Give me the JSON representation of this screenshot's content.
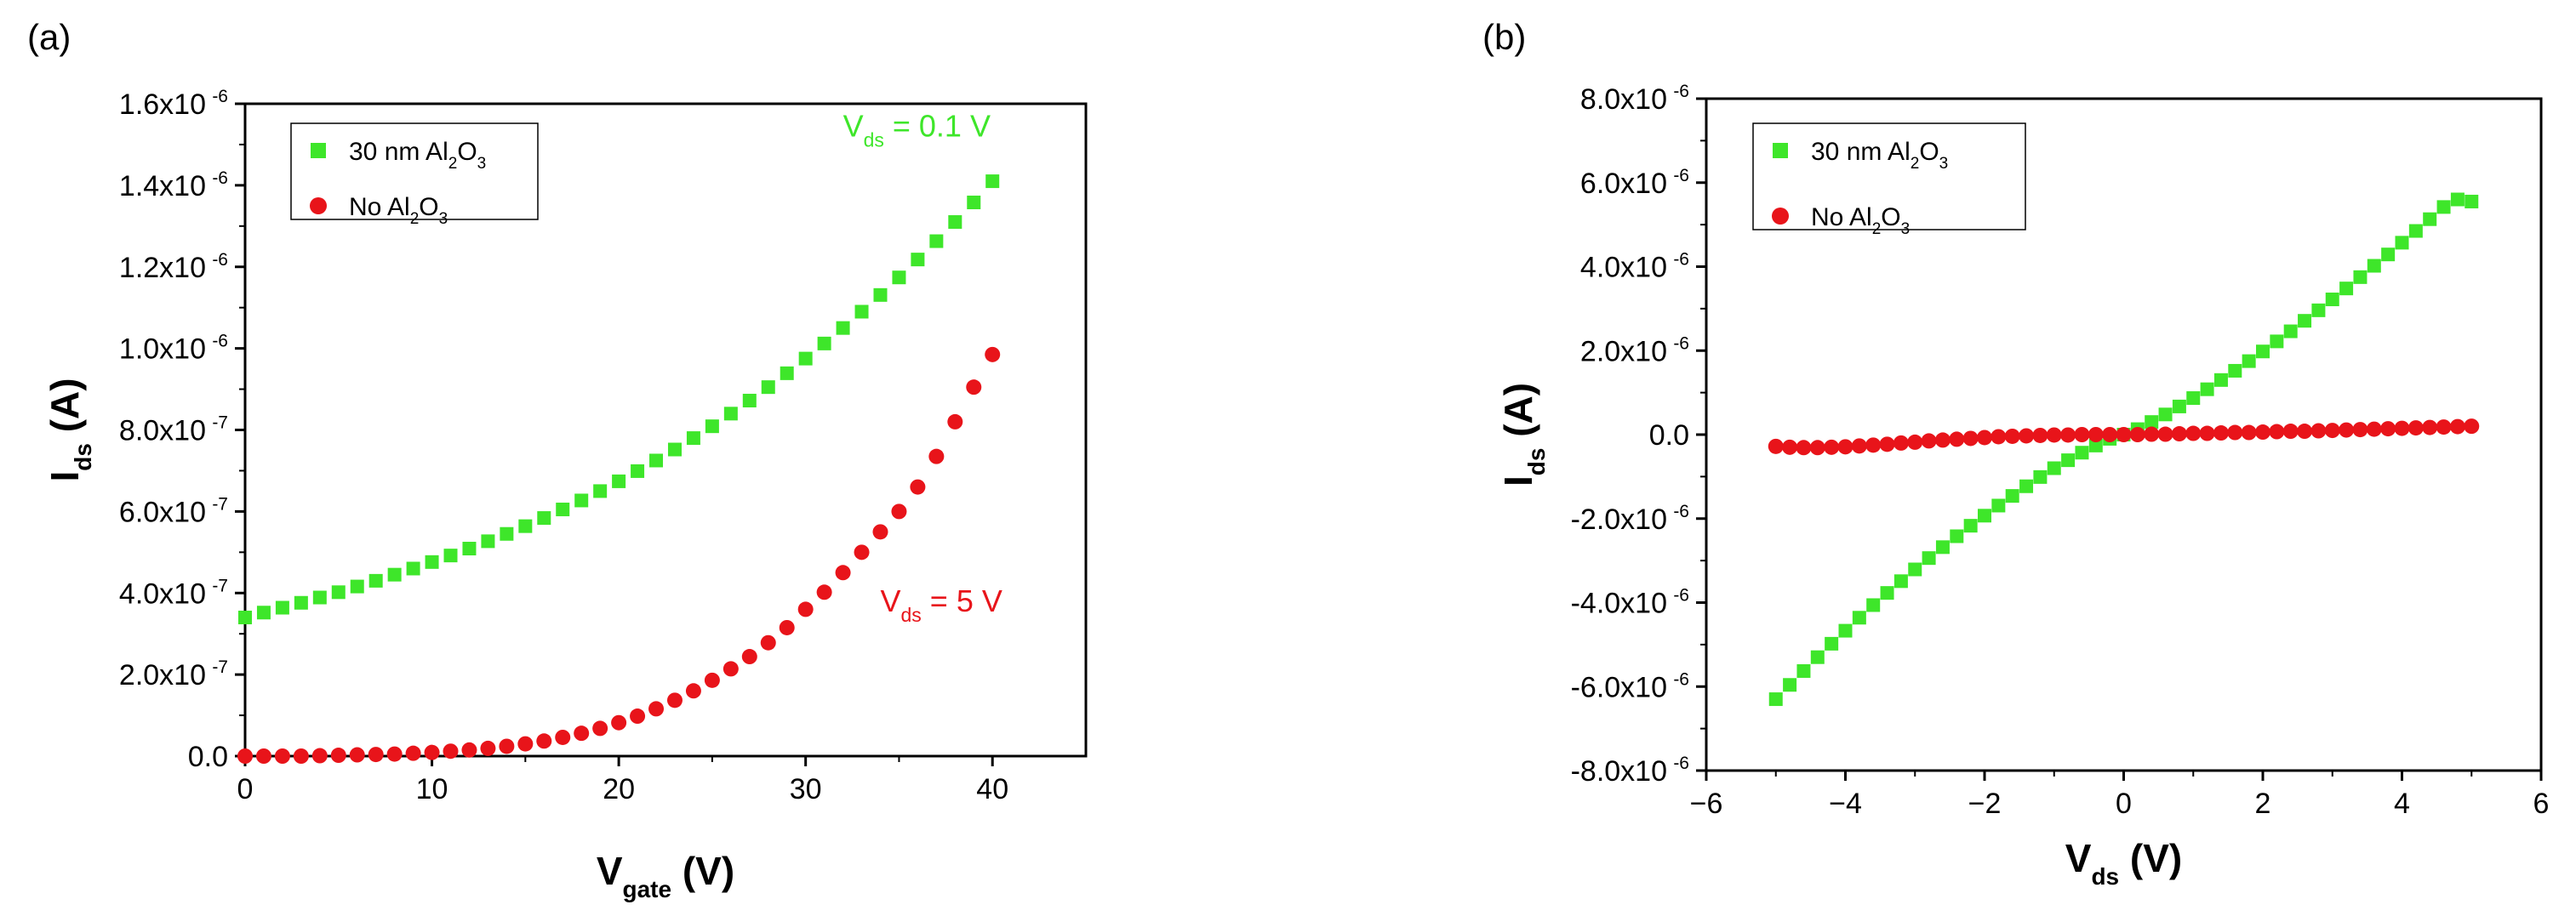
{
  "chart_data": [
    {
      "panel_label": "(a)",
      "type": "scatter",
      "xlabel": {
        "main": "V",
        "sub": "gate",
        "unit": " (V)"
      },
      "ylabel": {
        "main": "I",
        "sub": "ds",
        "unit": " (A)"
      },
      "xlim": [
        0,
        45
      ],
      "ylim": [
        0,
        1.6e-06
      ],
      "xticks": [
        0,
        10,
        20,
        30,
        40
      ],
      "yticks": [
        {
          "value": 0,
          "mant": "0.0",
          "exp": ""
        },
        {
          "value": 2e-07,
          "mant": "2.0x10",
          "exp": "-7"
        },
        {
          "value": 4e-07,
          "mant": "4.0x10",
          "exp": "-7"
        },
        {
          "value": 6e-07,
          "mant": "6.0x10",
          "exp": "-7"
        },
        {
          "value": 8e-07,
          "mant": "8.0x10",
          "exp": "-7"
        },
        {
          "value": 1e-06,
          "mant": "1.0x10",
          "exp": "-6"
        },
        {
          "value": 1.2e-06,
          "mant": "1.2x10",
          "exp": "-6"
        },
        {
          "value": 1.4e-06,
          "mant": "1.4x10",
          "exp": "-6"
        },
        {
          "value": 1.6e-06,
          "mant": "1.6x10",
          "exp": "-6"
        }
      ],
      "legend": {
        "position": "top-left",
        "entries": [
          {
            "series": 0,
            "parts": [
              [
                "30 nm Al",
                ""
              ],
              [
                "2",
                "sub"
              ],
              [
                "O",
                ""
              ],
              [
                "3",
                "sub"
              ]
            ]
          },
          {
            "series": 1,
            "parts": [
              [
                "No Al",
                ""
              ],
              [
                "2",
                "sub"
              ],
              [
                "O",
                ""
              ],
              [
                "3",
                "sub"
              ]
            ]
          }
        ]
      },
      "annotations": [
        {
          "series": 0,
          "near": "upper-right",
          "parts": [
            [
              "V",
              ""
            ],
            [
              "ds",
              "sub"
            ],
            [
              " = 0.1 V",
              ""
            ]
          ],
          "x": 32,
          "y": 1.52e-06
        },
        {
          "series": 1,
          "near": "lower-right",
          "parts": [
            [
              "V",
              ""
            ],
            [
              "ds",
              "sub"
            ],
            [
              " = 5 V",
              ""
            ]
          ],
          "x": 34,
          "y": 3.55e-07
        }
      ],
      "series": [
        {
          "name": "30 nm Al2O3",
          "marker": "square",
          "color": "#3ee62a",
          "x": [
            0,
            1,
            2,
            3,
            4,
            5,
            6,
            7,
            8,
            9,
            10,
            11,
            12,
            13,
            14,
            15,
            16,
            17,
            18,
            19,
            20,
            21,
            22,
            23,
            24,
            25,
            26,
            27,
            28,
            29,
            30,
            31,
            32,
            33,
            34,
            35,
            36,
            37,
            38,
            39,
            40
          ],
          "y": [
            3.4e-07,
            3.52e-07,
            3.64e-07,
            3.76e-07,
            3.89e-07,
            4.02e-07,
            4.16e-07,
            4.3e-07,
            4.45e-07,
            4.6e-07,
            4.76e-07,
            4.92e-07,
            5.09e-07,
            5.27e-07,
            5.45e-07,
            5.64e-07,
            5.84e-07,
            6.05e-07,
            6.27e-07,
            6.5e-07,
            6.74e-07,
            6.99e-07,
            7.25e-07,
            7.52e-07,
            7.8e-07,
            8.09e-07,
            8.4e-07,
            8.72e-07,
            9.05e-07,
            9.39e-07,
            9.75e-07,
            1.012e-06,
            1.05e-06,
            1.09e-06,
            1.131e-06,
            1.174e-06,
            1.218e-06,
            1.263e-06,
            1.31e-06,
            1.358e-06,
            1.41e-06
          ]
        },
        {
          "name": "No Al2O3",
          "marker": "circle",
          "color": "#e8141a",
          "x": [
            0,
            1,
            2,
            3,
            4,
            5,
            6,
            7,
            8,
            9,
            10,
            11,
            12,
            13,
            14,
            15,
            16,
            17,
            18,
            19,
            20,
            21,
            22,
            23,
            24,
            25,
            26,
            27,
            28,
            29,
            30,
            31,
            32,
            33,
            34,
            35,
            36,
            37,
            38,
            39,
            40
          ],
          "y": [
            0,
            0,
            0,
            0,
            1e-09,
            2e-09,
            3e-09,
            4e-09,
            5e-09,
            7e-09,
            9e-09,
            1.2e-08,
            1.5e-08,
            1.9e-08,
            2.4e-08,
            3e-08,
            3.7e-08,
            4.6e-08,
            5.6e-08,
            6.8e-08,
            8.2e-08,
            9.8e-08,
            1.16e-07,
            1.37e-07,
            1.6e-07,
            1.86e-07,
            2.14e-07,
            2.44e-07,
            2.78e-07,
            3.15e-07,
            3.6e-07,
            4.02e-07,
            4.5e-07,
            5e-07,
            5.5e-07,
            6e-07,
            6.6e-07,
            7.35e-07,
            8.2e-07,
            9.05e-07,
            9.85e-07
          ]
        }
      ]
    },
    {
      "panel_label": "(b)",
      "type": "scatter",
      "xlabel": {
        "main": "V",
        "sub": "ds",
        "unit": " (V)"
      },
      "ylabel": {
        "main": "I",
        "sub": "ds",
        "unit": " (A)"
      },
      "xlim": [
        -6,
        6
      ],
      "ylim": [
        -8e-06,
        8e-06
      ],
      "xticks": [
        -6,
        -4,
        -2,
        0,
        2,
        4,
        6
      ],
      "xtick_labels": [
        "−6",
        "−4",
        "−2",
        "0",
        "2",
        "4",
        "6"
      ],
      "yticks": [
        {
          "value": -8e-06,
          "mant": "-8.0x10",
          "exp": "-6"
        },
        {
          "value": -6e-06,
          "mant": "-6.0x10",
          "exp": "-6"
        },
        {
          "value": -4e-06,
          "mant": "-4.0x10",
          "exp": "-6"
        },
        {
          "value": -2e-06,
          "mant": "-2.0x10",
          "exp": "-6"
        },
        {
          "value": 0,
          "mant": "0.0",
          "exp": ""
        },
        {
          "value": 2e-06,
          "mant": "2.0x10",
          "exp": "-6"
        },
        {
          "value": 4e-06,
          "mant": "4.0x10",
          "exp": "-6"
        },
        {
          "value": 6e-06,
          "mant": "6.0x10",
          "exp": "-6"
        },
        {
          "value": 8e-06,
          "mant": "8.0x10",
          "exp": "-6"
        }
      ],
      "legend": {
        "position": "top-left",
        "entries": [
          {
            "series": 0,
            "parts": [
              [
                "30 nm Al",
                ""
              ],
              [
                "2",
                "sub"
              ],
              [
                "O",
                ""
              ],
              [
                "3",
                "sub"
              ]
            ]
          },
          {
            "series": 1,
            "parts": [
              [
                "No Al",
                ""
              ],
              [
                "2",
                "sub"
              ],
              [
                "O",
                ""
              ],
              [
                "3",
                "sub"
              ]
            ]
          }
        ]
      },
      "annotations": [],
      "series": [
        {
          "name": "30 nm Al2O3",
          "marker": "square",
          "color": "#3ee62a",
          "x": [
            -5.0,
            -4.8,
            -4.6,
            -4.4,
            -4.2,
            -4.0,
            -3.8,
            -3.6,
            -3.4,
            -3.2,
            -3.0,
            -2.8,
            -2.6,
            -2.4,
            -2.2,
            -2.0,
            -1.8,
            -1.6,
            -1.4,
            -1.2,
            -1.0,
            -0.8,
            -0.6,
            -0.4,
            -0.2,
            0.0,
            0.2,
            0.4,
            0.6,
            0.8,
            1.0,
            1.2,
            1.4,
            1.6,
            1.8,
            2.0,
            2.2,
            2.4,
            2.6,
            2.8,
            3.0,
            3.2,
            3.4,
            3.6,
            3.8,
            4.0,
            4.2,
            4.4,
            4.6,
            4.8,
            5.0
          ],
          "y": [
            -6.3e-06,
            -5.96e-06,
            -5.63e-06,
            -5.3e-06,
            -4.98e-06,
            -4.67e-06,
            -4.36e-06,
            -4.06e-06,
            -3.77e-06,
            -3.49e-06,
            -3.21e-06,
            -2.94e-06,
            -2.68e-06,
            -2.42e-06,
            -2.17e-06,
            -1.93e-06,
            -1.69e-06,
            -1.46e-06,
            -1.23e-06,
            -1.01e-06,
            -8e-07,
            -6.1e-07,
            -4.3e-07,
            -2.6e-07,
            -1e-07,
            0.0,
            1.3e-07,
            3e-07,
            4.8e-07,
            6.7e-07,
            8.7e-07,
            1.08e-06,
            1.3e-06,
            1.52e-06,
            1.75e-06,
            1.98e-06,
            2.22e-06,
            2.46e-06,
            2.71e-06,
            2.96e-06,
            3.22e-06,
            3.48e-06,
            3.75e-06,
            4.02e-06,
            4.29e-06,
            4.57e-06,
            4.85e-06,
            5.13e-06,
            5.42e-06,
            5.6e-06,
            5.55e-06
          ]
        },
        {
          "name": "No Al2O3",
          "marker": "circle",
          "color": "#e8141a",
          "x": [
            -5.0,
            -4.8,
            -4.6,
            -4.4,
            -4.2,
            -4.0,
            -3.8,
            -3.6,
            -3.4,
            -3.2,
            -3.0,
            -2.8,
            -2.6,
            -2.4,
            -2.2,
            -2.0,
            -1.8,
            -1.6,
            -1.4,
            -1.2,
            -1.0,
            -0.8,
            -0.6,
            -0.4,
            -0.2,
            0.0,
            0.2,
            0.4,
            0.6,
            0.8,
            1.0,
            1.2,
            1.4,
            1.6,
            1.8,
            2.0,
            2.2,
            2.4,
            2.6,
            2.8,
            3.0,
            3.2,
            3.4,
            3.6,
            3.8,
            4.0,
            4.2,
            4.4,
            4.6,
            4.8,
            5.0
          ],
          "y": [
            -2.8e-07,
            -3e-07,
            -3.1e-07,
            -3.1e-07,
            -3e-07,
            -2.9e-07,
            -2.7e-07,
            -2.5e-07,
            -2.3e-07,
            -2e-07,
            -1.8e-07,
            -1.5e-07,
            -1.3e-07,
            -1.1e-07,
            -9e-08,
            -7e-08,
            -5e-08,
            -4e-08,
            -3e-08,
            -2e-08,
            -1e-08,
            -1e-08,
            0.0,
            0.0,
            0.0,
            0.0,
            0.0,
            1e-08,
            1e-08,
            2e-08,
            3e-08,
            3e-08,
            4e-08,
            5e-08,
            5e-08,
            6e-08,
            7e-08,
            8e-08,
            8e-08,
            9e-08,
            1e-07,
            1.1e-07,
            1.2e-07,
            1.3e-07,
            1.4e-07,
            1.5e-07,
            1.6e-07,
            1.7e-07,
            1.8e-07,
            1.9e-07,
            2e-07
          ]
        }
      ]
    }
  ]
}
